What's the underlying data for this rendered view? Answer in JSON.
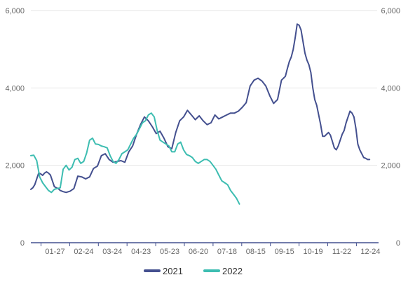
{
  "chart_data": {
    "type": "line",
    "title": "",
    "xlabel": "",
    "ylabel": "",
    "ylim": [
      0,
      6000
    ],
    "y_ticks": [
      "0",
      "2,000",
      "4,000",
      "6,000"
    ],
    "y_ticks_right": [
      "0",
      "2,000",
      "4,000",
      "6,000"
    ],
    "x_ticks": [
      "01-27",
      "02-24",
      "03-24",
      "04-23",
      "05-23",
      "06-20",
      "07-18",
      "08-15",
      "09-15",
      "10-19",
      "11-22",
      "12-24"
    ],
    "grid": "horizontal",
    "legend": "bottom",
    "series": [
      {
        "name": "2021",
        "color": "#44508f",
        "x": [
          0,
          2,
          4,
          6,
          8,
          10,
          12,
          14,
          16,
          18,
          20,
          22,
          24,
          26,
          28,
          30,
          33,
          36,
          40,
          44,
          48,
          52,
          56,
          60,
          64,
          68,
          72,
          76,
          80,
          84,
          88,
          92,
          96,
          100,
          104,
          108,
          112,
          116,
          120,
          124,
          128,
          132,
          136,
          140,
          144,
          148,
          152,
          156,
          160,
          164,
          168,
          172,
          176,
          180,
          184,
          188,
          192,
          196,
          200,
          204,
          208,
          212,
          216,
          220,
          224,
          228,
          232,
          236,
          240,
          244,
          248,
          252,
          256,
          260,
          262,
          264,
          266,
          268,
          270,
          272,
          274,
          276,
          278,
          280,
          282,
          284,
          286,
          288,
          290,
          292,
          294,
          296,
          298,
          300,
          302,
          304,
          306,
          308,
          310,
          312,
          314,
          316,
          318,
          320,
          322,
          324,
          326,
          328,
          330,
          332,
          334,
          336,
          338,
          340,
          342,
          344,
          346
        ],
        "values": [
          1380,
          1420,
          1500,
          1650,
          1800,
          1780,
          1740,
          1800,
          1830,
          1800,
          1750,
          1600,
          1450,
          1420,
          1400,
          1350,
          1320,
          1300,
          1330,
          1400,
          1720,
          1700,
          1650,
          1700,
          1920,
          1980,
          2250,
          2300,
          2150,
          2080,
          2100,
          2120,
          2080,
          2350,
          2500,
          2800,
          3050,
          3250,
          3150,
          3000,
          2820,
          2880,
          2700,
          2480,
          2430,
          2850,
          3150,
          3250,
          3420,
          3300,
          3180,
          3280,
          3150,
          3050,
          3100,
          3300,
          3200,
          3250,
          3300,
          3350,
          3350,
          3400,
          3500,
          3620,
          4050,
          4200,
          4250,
          4180,
          4050,
          3800,
          3600,
          3700,
          4200,
          4300,
          4500,
          4680,
          4800,
          5000,
          5300,
          5650,
          5620,
          5500,
          5200,
          4900,
          4720,
          4600,
          4400,
          4000,
          3700,
          3550,
          3300,
          3050,
          2750,
          2750,
          2800,
          2850,
          2780,
          2620,
          2450,
          2400,
          2500,
          2650,
          2800,
          2900,
          3100,
          3250,
          3400,
          3350,
          3250,
          2950,
          2550,
          2400,
          2300,
          2200,
          2180,
          2150,
          2150
        ]
      },
      {
        "name": "2022",
        "color": "#3dbdb1",
        "x": [
          0,
          3,
          6,
          9,
          12,
          15,
          18,
          21,
          24,
          27,
          30,
          33,
          36,
          39,
          42,
          45,
          48,
          51,
          54,
          57,
          60,
          63,
          66,
          69,
          72,
          75,
          78,
          81,
          84,
          87,
          90,
          93,
          96,
          99,
          102,
          105,
          108,
          111,
          114,
          117,
          120,
          123,
          126,
          129,
          132,
          135,
          138,
          141,
          144,
          147,
          150,
          153,
          156,
          159,
          162,
          165,
          168,
          171,
          174,
          177,
          180,
          183,
          186,
          189,
          192,
          195,
          198,
          201,
          204,
          207,
          210,
          213
        ],
        "values": [
          2250,
          2260,
          2120,
          1700,
          1550,
          1450,
          1350,
          1300,
          1380,
          1400,
          1420,
          1900,
          2000,
          1880,
          1950,
          2150,
          2180,
          2050,
          2100,
          2320,
          2650,
          2700,
          2550,
          2540,
          2500,
          2480,
          2450,
          2250,
          2100,
          2050,
          2150,
          2300,
          2350,
          2400,
          2550,
          2700,
          2800,
          2950,
          3100,
          3150,
          3300,
          3350,
          3250,
          2900,
          2650,
          2600,
          2550,
          2500,
          2350,
          2350,
          2550,
          2600,
          2400,
          2280,
          2250,
          2200,
          2100,
          2050,
          2100,
          2150,
          2150,
          2100,
          2000,
          1900,
          1750,
          1600,
          1550,
          1500,
          1350,
          1250,
          1150,
          1000
        ]
      }
    ]
  }
}
